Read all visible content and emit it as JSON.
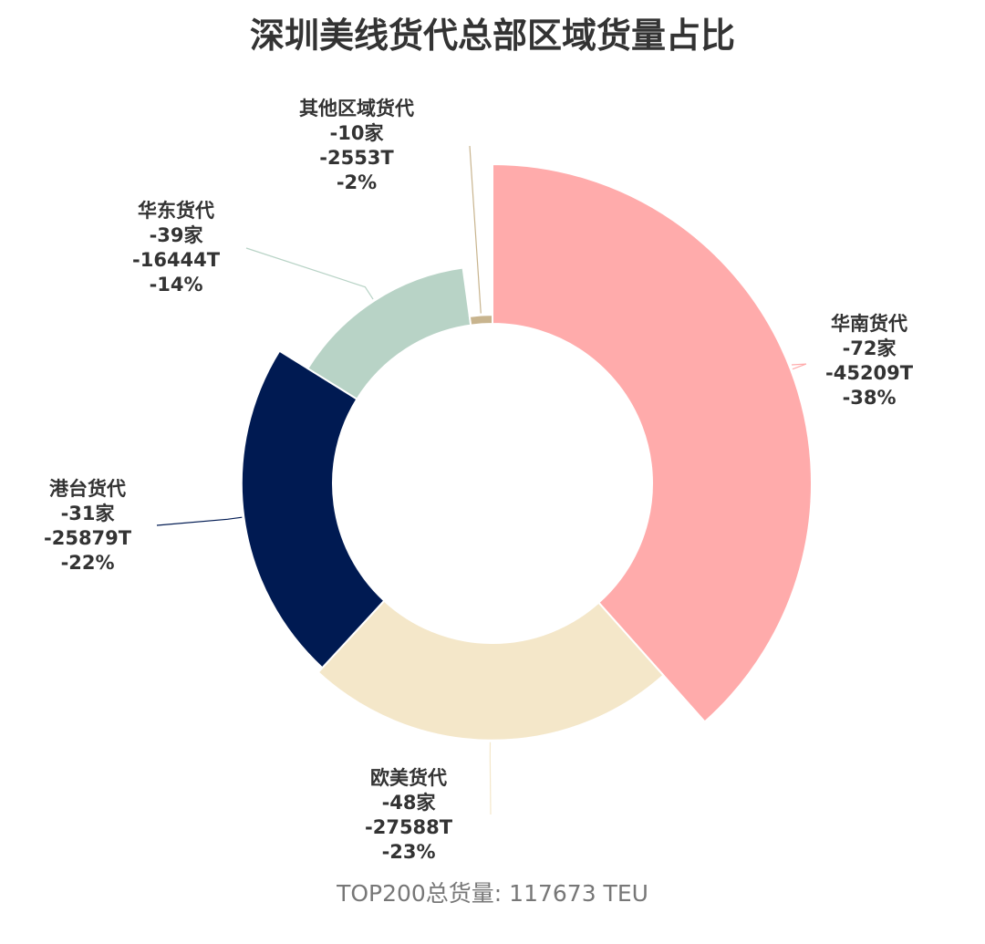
{
  "chart_data": {
    "type": "pie",
    "subtype": "rose-donut",
    "title": "深圳美线货代总部区域货量占比",
    "footer": "TOP200总货量: 117673 TEU",
    "slices": [
      {
        "name": "华南货代",
        "count": "-72家",
        "value_label": "-45209T",
        "pct_label": "-38%",
        "value": 45209,
        "percent": 38,
        "color": "#FFABAB"
      },
      {
        "name": "欧美货代",
        "count": "-48家",
        "value_label": "-27588T",
        "pct_label": "-23%",
        "value": 27588,
        "percent": 23,
        "color": "#F4E7C9"
      },
      {
        "name": "港台货代",
        "count": "-31家",
        "value_label": "-25879T",
        "pct_label": "-22%",
        "value": 25879,
        "percent": 22,
        "color": "#001A52"
      },
      {
        "name": "华东货代",
        "count": "-39家",
        "value_label": "-16444T",
        "pct_label": "-14%",
        "value": 16444,
        "percent": 14,
        "color": "#B8D3C6"
      },
      {
        "name": "其他区域货代",
        "count": "-10家",
        "value_label": "-2553T",
        "pct_label": "-2%",
        "value": 2553,
        "percent": 2,
        "color": "#C8B48E"
      }
    ]
  }
}
